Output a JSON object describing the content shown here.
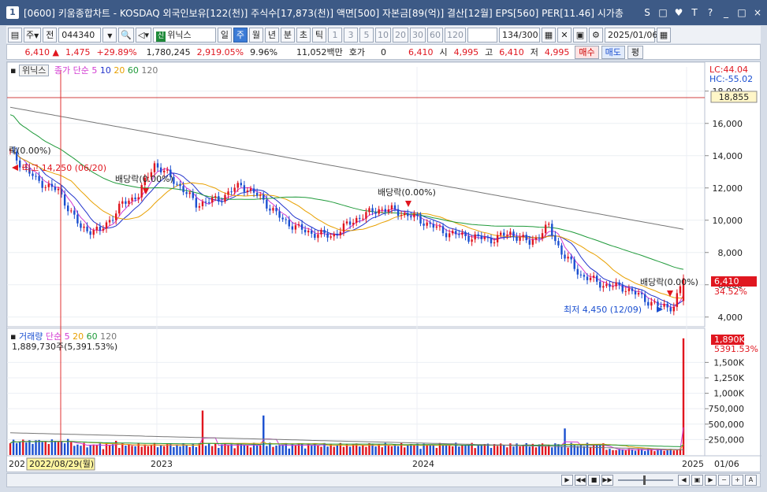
{
  "window": {
    "title": "[0600] 키움종합차트 - KOSDAQ 외국인보유[122(천)] 주식수[17,873(천)] 액면[500] 자본금[89(억)] 결산[12월] EPS[560] PER[11.46] 시가총",
    "app_number": "1",
    "buttons": [
      "S",
      "□",
      "♥",
      "T",
      "?",
      "_",
      "□",
      "×"
    ]
  },
  "toolbar": {
    "type_select": "주",
    "prev_label": "전",
    "code": "044340",
    "badge": "신",
    "stock_name": "위닉스",
    "period_tabs": [
      "일",
      "주",
      "월",
      "년"
    ],
    "active_period": "주",
    "interval_tabs": [
      "분",
      "초",
      "틱"
    ],
    "numbers": [
      "1",
      "3",
      "5",
      "10",
      "20",
      "30",
      "60",
      "120"
    ],
    "count": "134",
    "count_total": "/300",
    "date": "2025/01/06"
  },
  "quote": {
    "price": "6,410",
    "change": "1,475",
    "change_pct": "+29.89%",
    "volume": "1,780,245",
    "volume_pct": "2,919.05%",
    "turnover": "9.96%",
    "amount": "11,052백만",
    "hoga_label": "호가",
    "hoga_value": "0",
    "price2": "6,410",
    "open_label": "시",
    "open": "4,995",
    "high_label": "고",
    "high": "6,410",
    "low_label": "저",
    "low": "4,995",
    "buy_label": "매수",
    "sell_label": "매도",
    "eval_label": "평"
  },
  "price_panel": {
    "name_label": "위닉스",
    "ma_label": "종가 단순",
    "ma_periods": [
      "5",
      "10",
      "20",
      "60",
      "120"
    ],
    "ma_colors": [
      "#d23ad2",
      "#2233cc",
      "#e8a000",
      "#1f9a3a",
      "#777777"
    ],
    "lc": "LC:44.04",
    "hc": "HC:-55.02",
    "ref_price": "18,855",
    "cur_price": "6,410",
    "cur_pct": "34.52%",
    "high_note": "최고 14,250 (06/20)",
    "low_note": "최저 4,450 (12/09)",
    "dividend_note": "배당락(0.00%)",
    "dividend_partial": "락(0.00%)",
    "y_ticks": [
      "18,000",
      "16,000",
      "14,000",
      "12,000",
      "10,000",
      "8,000",
      "6,000",
      "4,000"
    ]
  },
  "volume_panel": {
    "name_label": "거래량",
    "ma_label": "단순",
    "ma_periods": [
      "5",
      "20",
      "60",
      "120"
    ],
    "summary": "1,889,730주(5,391.53%)",
    "cur_vol": "1,890K",
    "cur_pct": "5391.53%",
    "y_ticks": [
      "1,500K",
      "1,250K",
      "1,000K",
      "750,000",
      "500,000",
      "250,000"
    ]
  },
  "x_axis": {
    "labels": [
      "2023",
      "2024",
      "2025",
      "01/06"
    ],
    "cursor_label": "2022/08/29(월)",
    "left_cut": "202"
  },
  "chart_data": {
    "type": "candlestick",
    "y_range": [
      3500,
      19500
    ],
    "volume_range": [
      0,
      1900000
    ],
    "reference_line": 18855,
    "series_ma": [
      "5",
      "10",
      "20",
      "60",
      "120"
    ]
  }
}
